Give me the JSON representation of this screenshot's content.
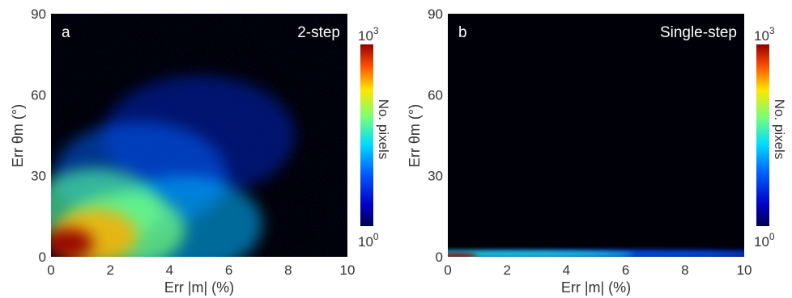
{
  "chart_data": [
    {
      "type": "heatmap",
      "panel_label": "a",
      "title": "2-step",
      "xlabel": "Err |m| (%)",
      "ylabel": "Err θm (°)",
      "xlim": [
        0,
        10
      ],
      "ylim": [
        0,
        90
      ],
      "xticks": [
        "0",
        "2",
        "4",
        "6",
        "8",
        "10"
      ],
      "yticks": [
        "0",
        "30",
        "60",
        "90"
      ],
      "colorbar": {
        "label": "No. pixels",
        "min_label": "10",
        "min_exp": "0",
        "max_label": "10",
        "max_exp": "3",
        "scale": "log",
        "range": [
          1,
          1000
        ]
      },
      "density_regions": [
        {
          "x": 0.6,
          "y": 5,
          "level": 1.0
        },
        {
          "x": 1.5,
          "y": 8,
          "level": 0.8
        },
        {
          "x": 2.5,
          "y": 10,
          "level": 0.6
        },
        {
          "x": 1.5,
          "y": 18,
          "level": 0.55
        },
        {
          "x": 4.5,
          "y": 12,
          "level": 0.4
        },
        {
          "x": 3,
          "y": 30,
          "level": 0.3
        },
        {
          "x": 5,
          "y": 45,
          "level": 0.2
        }
      ]
    },
    {
      "type": "heatmap",
      "panel_label": "b",
      "title": "Single-step",
      "xlabel": "Err |m| (%)",
      "ylabel": "Err θm (°)",
      "xlim": [
        0,
        10
      ],
      "ylim": [
        0,
        90
      ],
      "xticks": [
        "0",
        "2",
        "4",
        "6",
        "8",
        "10"
      ],
      "yticks": [
        "0",
        "30",
        "60",
        "90"
      ],
      "colorbar": {
        "label": "No. pixels",
        "min_label": "10",
        "min_exp": "0",
        "max_label": "10",
        "max_exp": "3",
        "scale": "log",
        "range": [
          1,
          1000
        ]
      },
      "density_regions": [
        {
          "x": 0.3,
          "y": 0.5,
          "level": 1.0
        },
        {
          "x": 1.5,
          "y": 1,
          "level": 0.5
        },
        {
          "x": 4,
          "y": 1,
          "level": 0.3
        },
        {
          "x": 8,
          "y": 1,
          "level": 0.2
        }
      ]
    }
  ]
}
